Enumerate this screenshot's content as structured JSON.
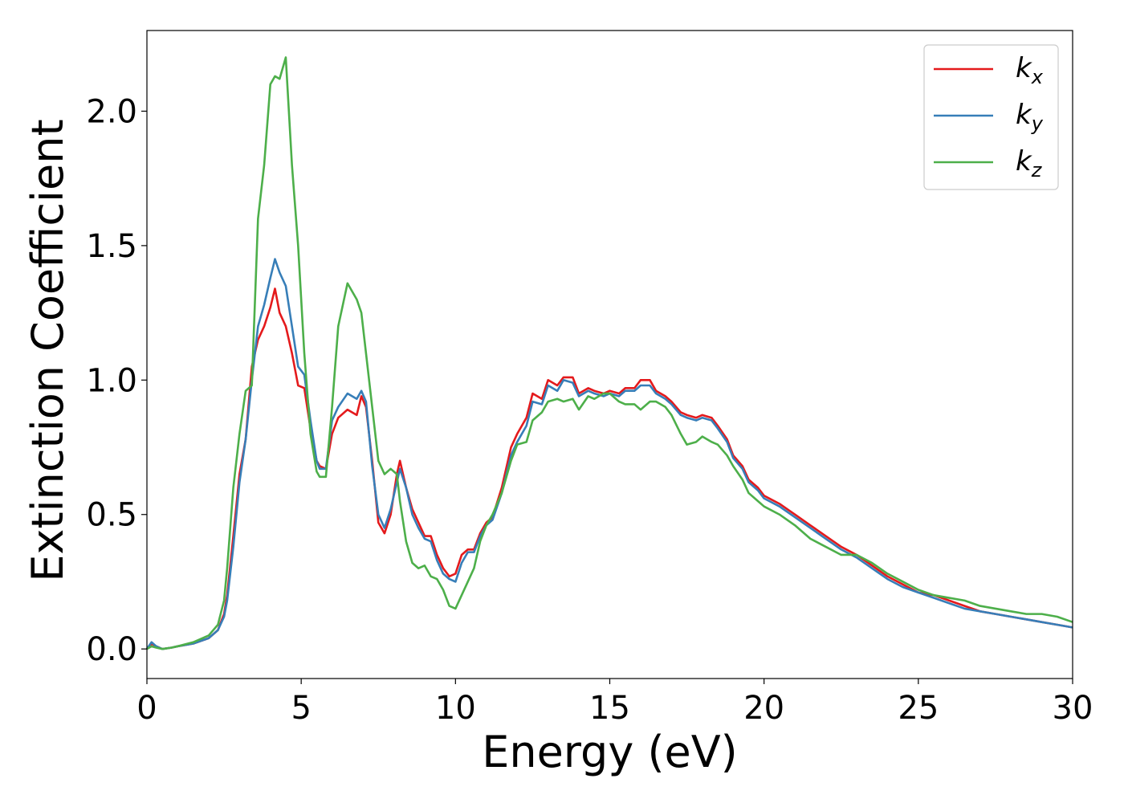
{
  "chart_data": {
    "type": "line",
    "xlabel": "Energy (eV)",
    "ylabel": "Extinction Coefficient",
    "xlim": [
      0,
      30
    ],
    "ylim": [
      -0.11,
      2.3
    ],
    "xticks": [
      0,
      5,
      10,
      15,
      20,
      25,
      30
    ],
    "xtick_labels": [
      "0",
      "5",
      "10",
      "15",
      "20",
      "25",
      "30"
    ],
    "yticks": [
      0.0,
      0.5,
      1.0,
      1.5,
      2.0
    ],
    "ytick_labels": [
      "0.0",
      "0.5",
      "1.0",
      "1.5",
      "2.0"
    ],
    "grid": false,
    "legend_position": "top-right",
    "series": [
      {
        "name": "k_x",
        "label_main": "k",
        "label_sub": "x",
        "color": "#e41a1c",
        "x": [
          0,
          0.15,
          0.3,
          0.5,
          0.8,
          1.0,
          1.5,
          2.0,
          2.3,
          2.5,
          2.6,
          2.8,
          3.0,
          3.2,
          3.4,
          3.6,
          3.8,
          4.0,
          4.15,
          4.3,
          4.5,
          4.7,
          4.9,
          5.1,
          5.3,
          5.5,
          5.6,
          5.8,
          6.0,
          6.2,
          6.5,
          6.8,
          6.95,
          7.1,
          7.3,
          7.5,
          7.7,
          7.9,
          8.1,
          8.2,
          8.4,
          8.6,
          8.8,
          9.0,
          9.2,
          9.4,
          9.6,
          9.8,
          10.0,
          10.2,
          10.4,
          10.6,
          10.8,
          11.0,
          11.2,
          11.5,
          11.8,
          12.0,
          12.3,
          12.5,
          12.8,
          13.0,
          13.3,
          13.5,
          13.8,
          14.0,
          14.3,
          14.5,
          14.8,
          15.0,
          15.3,
          15.5,
          15.8,
          16.0,
          16.3,
          16.5,
          16.8,
          17.0,
          17.3,
          17.5,
          17.8,
          18.0,
          18.3,
          18.5,
          18.8,
          19.0,
          19.3,
          19.5,
          19.8,
          20.0,
          20.5,
          21.0,
          21.5,
          22.0,
          22.5,
          23.0,
          23.5,
          24.0,
          24.5,
          25.0,
          25.5,
          26.0,
          26.5,
          27.0,
          27.5,
          28.0,
          28.5,
          29.0,
          29.5,
          30.0
        ],
        "y": [
          0.0,
          0.02,
          0.01,
          0.0,
          0.005,
          0.01,
          0.02,
          0.04,
          0.07,
          0.13,
          0.2,
          0.42,
          0.65,
          0.78,
          1.05,
          1.15,
          1.2,
          1.27,
          1.34,
          1.25,
          1.2,
          1.1,
          0.98,
          0.97,
          0.82,
          0.7,
          0.68,
          0.67,
          0.8,
          0.86,
          0.89,
          0.87,
          0.94,
          0.9,
          0.7,
          0.47,
          0.43,
          0.5,
          0.65,
          0.7,
          0.6,
          0.52,
          0.47,
          0.42,
          0.42,
          0.35,
          0.3,
          0.27,
          0.28,
          0.35,
          0.37,
          0.37,
          0.43,
          0.47,
          0.49,
          0.6,
          0.75,
          0.8,
          0.86,
          0.95,
          0.93,
          1.0,
          0.98,
          1.01,
          1.01,
          0.95,
          0.97,
          0.96,
          0.95,
          0.96,
          0.95,
          0.97,
          0.97,
          1.0,
          1.0,
          0.96,
          0.94,
          0.92,
          0.88,
          0.87,
          0.86,
          0.87,
          0.86,
          0.83,
          0.78,
          0.72,
          0.68,
          0.63,
          0.6,
          0.57,
          0.54,
          0.5,
          0.46,
          0.42,
          0.38,
          0.35,
          0.31,
          0.27,
          0.24,
          0.21,
          0.2,
          0.18,
          0.16,
          0.14,
          0.13,
          0.12,
          0.11,
          0.1,
          0.09,
          0.08
        ]
      },
      {
        "name": "k_y",
        "label_main": "k",
        "label_sub": "y",
        "color": "#377eb8",
        "x": [
          0,
          0.15,
          0.3,
          0.5,
          0.8,
          1.0,
          1.5,
          2.0,
          2.3,
          2.5,
          2.6,
          2.8,
          3.0,
          3.2,
          3.4,
          3.6,
          3.8,
          4.0,
          4.15,
          4.3,
          4.5,
          4.7,
          4.9,
          5.1,
          5.3,
          5.5,
          5.6,
          5.8,
          6.0,
          6.2,
          6.5,
          6.8,
          6.95,
          7.1,
          7.3,
          7.5,
          7.7,
          7.9,
          8.1,
          8.2,
          8.4,
          8.6,
          8.8,
          9.0,
          9.2,
          9.4,
          9.6,
          9.8,
          10.0,
          10.2,
          10.4,
          10.6,
          10.8,
          11.0,
          11.2,
          11.5,
          11.8,
          12.0,
          12.3,
          12.5,
          12.8,
          13.0,
          13.3,
          13.5,
          13.8,
          14.0,
          14.3,
          14.5,
          14.8,
          15.0,
          15.3,
          15.5,
          15.8,
          16.0,
          16.3,
          16.5,
          16.8,
          17.0,
          17.3,
          17.5,
          17.8,
          18.0,
          18.3,
          18.5,
          18.8,
          19.0,
          19.3,
          19.5,
          19.8,
          20.0,
          20.5,
          21.0,
          21.5,
          22.0,
          22.5,
          23.0,
          23.5,
          24.0,
          24.5,
          25.0,
          25.5,
          26.0,
          26.5,
          27.0,
          27.5,
          28.0,
          28.5,
          29.0,
          29.5,
          30.0
        ],
        "y": [
          0.0,
          0.025,
          0.01,
          0.0,
          0.005,
          0.01,
          0.02,
          0.04,
          0.07,
          0.12,
          0.18,
          0.38,
          0.62,
          0.78,
          1.0,
          1.2,
          1.28,
          1.38,
          1.45,
          1.4,
          1.35,
          1.2,
          1.05,
          1.02,
          0.85,
          0.7,
          0.67,
          0.67,
          0.85,
          0.9,
          0.95,
          0.93,
          0.96,
          0.92,
          0.68,
          0.5,
          0.45,
          0.52,
          0.62,
          0.67,
          0.6,
          0.5,
          0.45,
          0.41,
          0.4,
          0.33,
          0.28,
          0.26,
          0.25,
          0.32,
          0.36,
          0.36,
          0.42,
          0.46,
          0.48,
          0.58,
          0.72,
          0.77,
          0.83,
          0.92,
          0.91,
          0.98,
          0.96,
          1.0,
          0.99,
          0.94,
          0.96,
          0.95,
          0.94,
          0.95,
          0.94,
          0.96,
          0.96,
          0.98,
          0.98,
          0.95,
          0.93,
          0.91,
          0.87,
          0.86,
          0.85,
          0.86,
          0.85,
          0.82,
          0.77,
          0.71,
          0.67,
          0.62,
          0.59,
          0.56,
          0.53,
          0.49,
          0.45,
          0.41,
          0.37,
          0.34,
          0.3,
          0.26,
          0.23,
          0.21,
          0.19,
          0.17,
          0.15,
          0.14,
          0.13,
          0.12,
          0.11,
          0.1,
          0.09,
          0.08
        ]
      },
      {
        "name": "k_z",
        "label_main": "k",
        "label_sub": "z",
        "color": "#4daf4a",
        "x": [
          0,
          0.15,
          0.3,
          0.5,
          0.8,
          1.0,
          1.5,
          2.0,
          2.3,
          2.5,
          2.6,
          2.8,
          3.0,
          3.2,
          3.4,
          3.6,
          3.8,
          4.0,
          4.15,
          4.3,
          4.5,
          4.7,
          4.9,
          5.1,
          5.3,
          5.5,
          5.6,
          5.8,
          6.0,
          6.2,
          6.5,
          6.8,
          6.95,
          7.1,
          7.3,
          7.5,
          7.7,
          7.9,
          8.1,
          8.2,
          8.4,
          8.6,
          8.8,
          9.0,
          9.2,
          9.4,
          9.6,
          9.8,
          10.0,
          10.2,
          10.4,
          10.6,
          10.8,
          11.0,
          11.2,
          11.5,
          11.8,
          12.0,
          12.3,
          12.5,
          12.8,
          13.0,
          13.3,
          13.5,
          13.8,
          14.0,
          14.3,
          14.5,
          14.8,
          15.0,
          15.3,
          15.5,
          15.8,
          16.0,
          16.3,
          16.5,
          16.8,
          17.0,
          17.3,
          17.5,
          17.8,
          18.0,
          18.3,
          18.5,
          18.8,
          19.0,
          19.3,
          19.5,
          19.8,
          20.0,
          20.5,
          21.0,
          21.5,
          22.0,
          22.5,
          23.0,
          23.5,
          24.0,
          24.5,
          25.0,
          25.5,
          26.0,
          26.5,
          27.0,
          27.5,
          28.0,
          28.5,
          29.0,
          29.5,
          30.0
        ],
        "y": [
          0.0,
          0.01,
          0.005,
          0.0,
          0.005,
          0.01,
          0.025,
          0.05,
          0.09,
          0.18,
          0.3,
          0.6,
          0.8,
          0.96,
          0.98,
          1.6,
          1.8,
          2.1,
          2.13,
          2.12,
          2.2,
          1.8,
          1.5,
          1.1,
          0.8,
          0.66,
          0.64,
          0.64,
          0.9,
          1.2,
          1.36,
          1.3,
          1.25,
          1.1,
          0.9,
          0.7,
          0.65,
          0.67,
          0.65,
          0.55,
          0.4,
          0.32,
          0.3,
          0.31,
          0.27,
          0.26,
          0.22,
          0.16,
          0.15,
          0.2,
          0.25,
          0.3,
          0.4,
          0.46,
          0.5,
          0.58,
          0.7,
          0.76,
          0.77,
          0.85,
          0.88,
          0.92,
          0.93,
          0.92,
          0.93,
          0.89,
          0.94,
          0.93,
          0.95,
          0.95,
          0.92,
          0.91,
          0.91,
          0.89,
          0.92,
          0.92,
          0.9,
          0.87,
          0.8,
          0.76,
          0.77,
          0.79,
          0.77,
          0.76,
          0.72,
          0.68,
          0.63,
          0.58,
          0.55,
          0.53,
          0.5,
          0.46,
          0.41,
          0.38,
          0.35,
          0.35,
          0.32,
          0.28,
          0.25,
          0.22,
          0.2,
          0.19,
          0.18,
          0.16,
          0.15,
          0.14,
          0.13,
          0.13,
          0.12,
          0.1
        ]
      }
    ]
  }
}
